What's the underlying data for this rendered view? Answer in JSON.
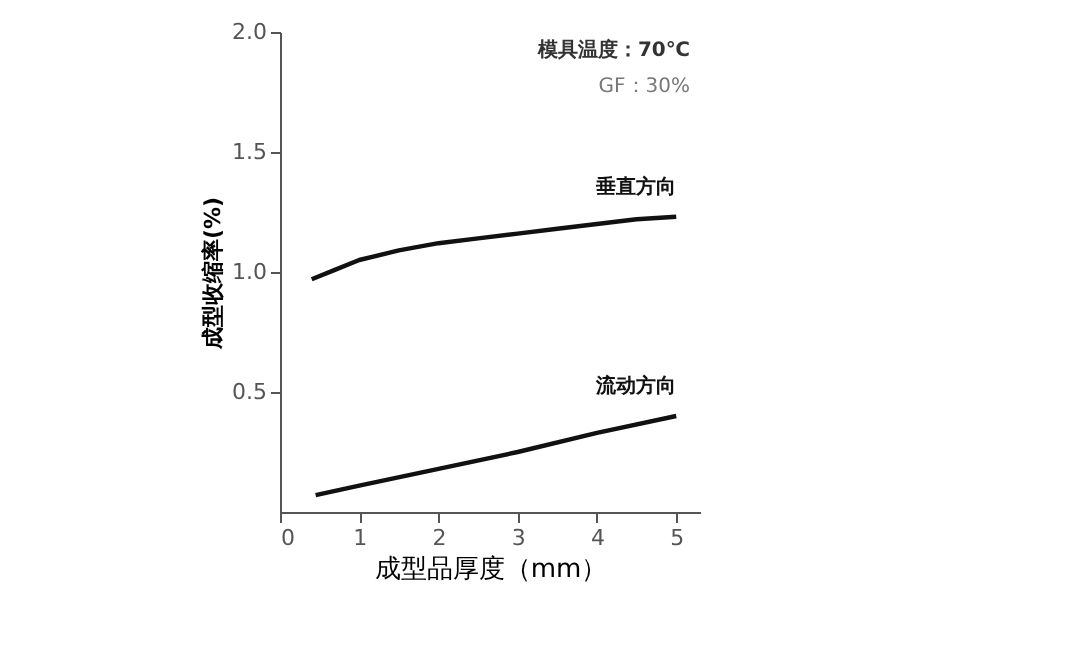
{
  "chart_data": {
    "type": "line",
    "xlabel": "成型品厚度（mm）",
    "ylabel": "成型收缩率(%)",
    "xlim": [
      0,
      5.3
    ],
    "xticks": [
      0,
      1,
      2,
      3,
      4,
      5
    ],
    "ylim": [
      0,
      2.0
    ],
    "yticks": [
      {
        "value": 0.5,
        "label": "0.5"
      },
      {
        "value": 1.0,
        "label": "1.0"
      },
      {
        "value": 1.5,
        "label": "1.5"
      },
      {
        "value": 2.0,
        "label": "2.0"
      }
    ],
    "grid": false,
    "legend": false,
    "annotations": [
      "模具温度：70℃",
      "GF：30%"
    ],
    "series": [
      {
        "name": "垂直方向",
        "color": "#111111",
        "x": [
          0.4,
          0.7,
          1,
          1.5,
          2,
          2.5,
          3,
          3.5,
          4,
          4.5,
          5
        ],
        "values": [
          0.97,
          1.01,
          1.05,
          1.09,
          1.12,
          1.14,
          1.16,
          1.18,
          1.2,
          1.22,
          1.23
        ]
      },
      {
        "name": "流动方向",
        "color": "#111111",
        "x": [
          0.45,
          1,
          2,
          3,
          4,
          5
        ],
        "values": [
          0.07,
          0.11,
          0.18,
          0.25,
          0.33,
          0.4
        ]
      }
    ]
  }
}
